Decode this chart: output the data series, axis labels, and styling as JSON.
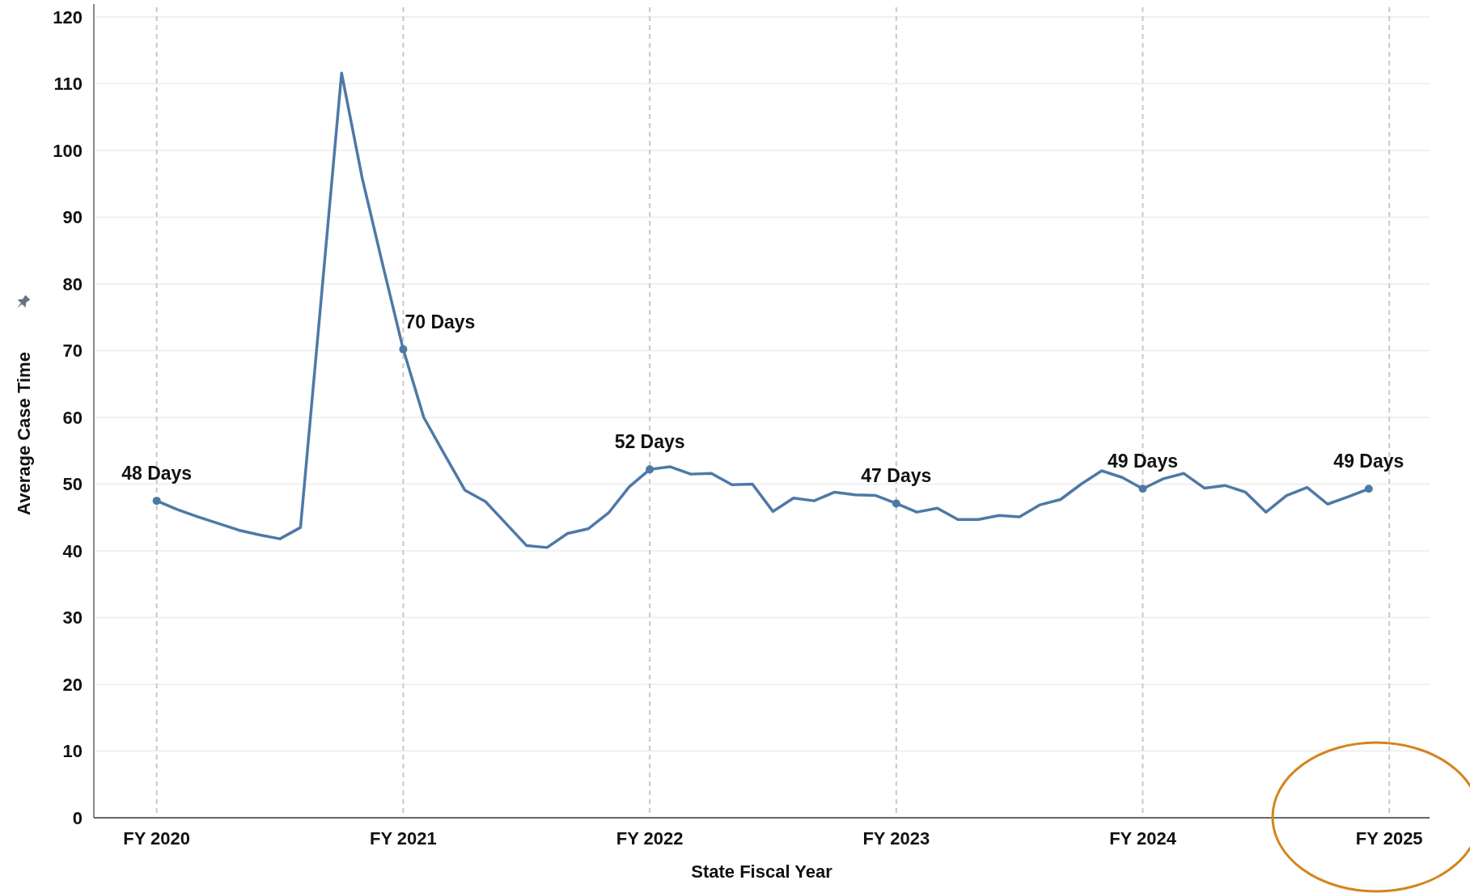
{
  "chart_data": {
    "type": "line",
    "xlabel": "State Fiscal Year",
    "ylabel": "Average Case Time",
    "categories": [
      "FY 2020",
      null,
      null,
      null,
      null,
      null,
      null,
      null,
      null,
      null,
      null,
      null,
      "FY 2021",
      null,
      null,
      null,
      null,
      null,
      null,
      null,
      null,
      null,
      null,
      null,
      "FY 2022",
      null,
      null,
      null,
      null,
      null,
      null,
      null,
      null,
      null,
      null,
      null,
      "FY 2023",
      null,
      null,
      null,
      null,
      null,
      null,
      null,
      null,
      null,
      null,
      null,
      "FY 2024",
      null,
      null,
      null,
      null,
      null,
      null,
      null,
      null,
      null,
      null,
      null,
      "FY 2025"
    ],
    "series": [
      {
        "color": "#4e79a7",
        "values": [
          47.5,
          46.2,
          45.1,
          44.1,
          43.1,
          42.4,
          41.8,
          43.5,
          77.5,
          111.6,
          95.9,
          82.9,
          70.2,
          60,
          54.5,
          49.1,
          47.4,
          44.1,
          40.8,
          40.5,
          42.6,
          43.3,
          45.7,
          49.6,
          52.2,
          52.6,
          51.5,
          51.6,
          49.9,
          50,
          45.9,
          47.9,
          47.5,
          48.8,
          48.4,
          48.3,
          47.1,
          45.8,
          46.4,
          44.7,
          44.7,
          45.3,
          45.1,
          46.9,
          47.7,
          50,
          52,
          51,
          49.3,
          50.8,
          51.6,
          49.4,
          49.8,
          48.8,
          45.8,
          48.3,
          49.5,
          47,
          48.1,
          49.3,
          null
        ]
      }
    ],
    "ylim": [
      0,
      120
    ],
    "yticks": [
      0,
      10,
      20,
      30,
      40,
      50,
      60,
      70,
      80,
      90,
      100,
      110,
      120
    ],
    "grid": true,
    "marker": "none",
    "line_style": "solid",
    "annotations": [
      {
        "text": "48 Days",
        "x": "FY 2020",
        "y": 47.5
      },
      {
        "text": "70 Days",
        "x": "FY 2021",
        "y": 70.2
      },
      {
        "text": "52 Days",
        "x": "FY 2022",
        "y": 52.2
      },
      {
        "text": "47 Days",
        "x": "FY 2023",
        "y": 47.1
      },
      {
        "text": "49 Days",
        "x": "FY 2024",
        "y": 49.3
      },
      {
        "text": "49 Days",
        "y": 49.3
      }
    ]
  }
}
